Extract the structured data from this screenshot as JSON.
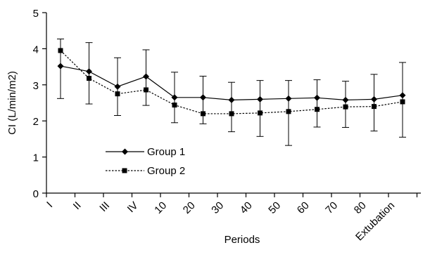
{
  "chart_data": {
    "type": "line",
    "xlabel": "Periods",
    "ylabel": "CI (L/min/m2)",
    "ylim": [
      0,
      5
    ],
    "yticks": [
      "0",
      "1",
      "2",
      "3",
      "4",
      "5"
    ],
    "categories": [
      "I",
      "II",
      "III",
      "IV",
      "10",
      "20",
      "30",
      "40",
      "50",
      "60",
      "70",
      "80",
      "Extubation"
    ],
    "grid": false,
    "legend_position": "lower-left",
    "series": [
      {
        "name": "Group 1",
        "marker": "diamond",
        "line_style": "solid",
        "color": "#000000",
        "values": [
          3.52,
          3.37,
          2.95,
          3.23,
          2.65,
          2.65,
          2.58,
          2.6,
          2.62,
          2.64,
          2.58,
          2.6,
          2.71
        ],
        "error_bars": [
          [
            2.62,
            4.27
          ],
          [
            2.47,
            4.17
          ],
          [
            2.15,
            3.75
          ],
          [
            2.43,
            3.97
          ],
          [
            1.95,
            3.35
          ],
          [
            1.92,
            3.24
          ],
          [
            1.7,
            3.07
          ],
          [
            1.57,
            3.12
          ],
          [
            1.32,
            3.12
          ],
          [
            1.83,
            3.14
          ],
          [
            1.82,
            3.1
          ],
          [
            1.72,
            3.29
          ],
          [
            1.55,
            3.62
          ]
        ]
      },
      {
        "name": "Group 2",
        "marker": "square",
        "line_style": "dotted",
        "color": "#000000",
        "values": [
          3.95,
          3.18,
          2.75,
          2.86,
          2.44,
          2.2,
          2.2,
          2.22,
          2.26,
          2.32,
          2.39,
          2.4,
          2.53
        ]
      }
    ]
  }
}
